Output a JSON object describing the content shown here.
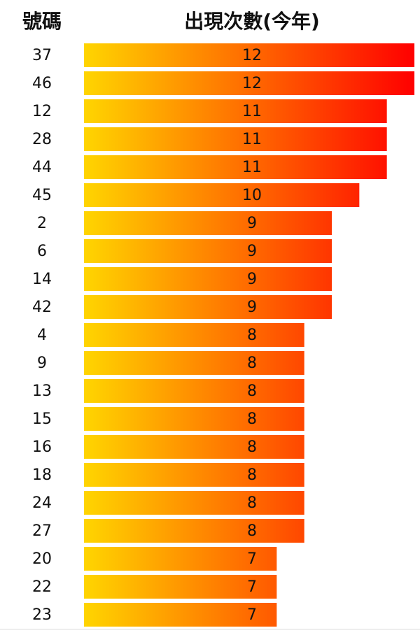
{
  "chart_data": {
    "type": "bar",
    "orientation": "horizontal",
    "category_header": "號碼",
    "value_header": "出現次數(今年)",
    "categories": [
      "37",
      "46",
      "12",
      "28",
      "44",
      "45",
      "2",
      "6",
      "14",
      "42",
      "4",
      "9",
      "13",
      "15",
      "16",
      "18",
      "24",
      "27",
      "20",
      "22",
      "23"
    ],
    "values": [
      12,
      12,
      11,
      11,
      11,
      10,
      9,
      9,
      9,
      9,
      8,
      8,
      8,
      8,
      8,
      8,
      8,
      8,
      7,
      7,
      7
    ],
    "gradient": [
      "#ffd500",
      "#ff0000"
    ]
  }
}
